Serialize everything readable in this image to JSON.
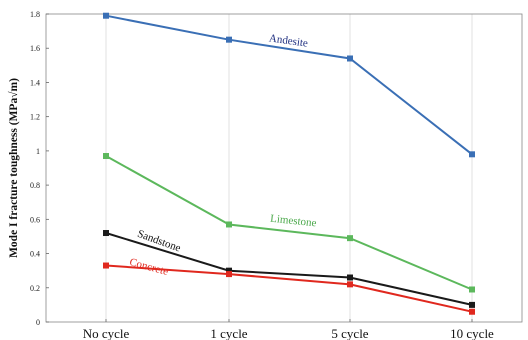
{
  "chart_data": {
    "type": "line",
    "title": "",
    "xlabel": "",
    "ylabel": "Mode I fracture toughness (MPa√m)",
    "categories": [
      "No cycle",
      "1 cycle",
      "5 cycle",
      "10 cycle"
    ],
    "ylim": [
      0,
      1.8
    ],
    "yticks": [
      "0",
      "0.2",
      "0.4",
      "0.6",
      "0.8",
      "1",
      "1.2",
      "1.4",
      "1.6",
      "1.8"
    ],
    "grid": "vertical",
    "series": [
      {
        "name": "Andesite",
        "values": [
          1.79,
          1.65,
          1.54,
          0.98
        ],
        "color": "#3a6fb5"
      },
      {
        "name": "Limestone",
        "values": [
          0.97,
          0.57,
          0.49,
          0.19
        ],
        "color": "#5cb85c"
      },
      {
        "name": "Sandstone",
        "values": [
          0.52,
          0.3,
          0.26,
          0.1
        ],
        "color": "#1a1a1a"
      },
      {
        "name": "Concrete",
        "values": [
          0.33,
          0.28,
          0.22,
          0.06
        ],
        "color": "#e0281e"
      }
    ]
  }
}
